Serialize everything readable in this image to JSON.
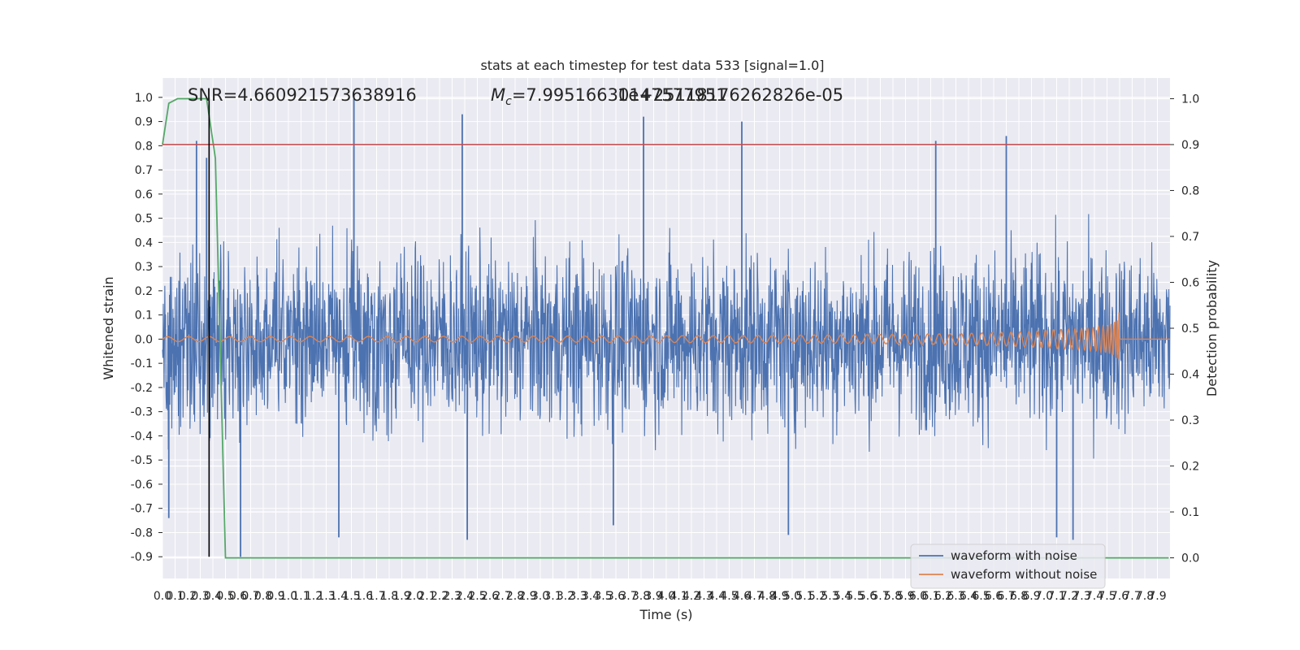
{
  "chart_data": {
    "type": "line",
    "title": "stats at each timestep for test data 533 [signal=1.0]",
    "xlabel": "Time (s)",
    "ylabel_left": "Whitened strain",
    "ylabel_right": "Detection probability",
    "xlim": [
      0.0,
      8.0
    ],
    "ylim_left": [
      -0.99,
      1.08
    ],
    "ylim_right": [
      -0.045,
      1.045
    ],
    "x_ticks": [
      "0.0",
      "0.1",
      "0.2",
      "0.3",
      "0.4",
      "0.5",
      "0.6",
      "0.7",
      "0.8",
      "0.9",
      "1.0",
      "1.1",
      "1.2",
      "1.3",
      "1.4",
      "1.5",
      "1.6",
      "1.7",
      "1.8",
      "1.9",
      "2.0",
      "2.1",
      "2.2",
      "2.3",
      "2.4",
      "2.5",
      "2.6",
      "2.7",
      "2.8",
      "2.9",
      "3.0",
      "3.1",
      "3.2",
      "3.3",
      "3.4",
      "3.5",
      "3.6",
      "3.7",
      "3.8",
      "3.9",
      "4.0",
      "4.1",
      "4.2",
      "4.3",
      "4.4",
      "4.5",
      "4.6",
      "4.7",
      "4.8",
      "4.9",
      "5.0",
      "5.1",
      "5.2",
      "5.3",
      "5.4",
      "5.5",
      "5.6",
      "5.7",
      "5.8",
      "5.9",
      "6.0",
      "6.1",
      "6.2",
      "6.3",
      "6.4",
      "6.5",
      "6.6",
      "6.7",
      "6.8",
      "6.9",
      "7.0",
      "7.1",
      "7.2",
      "7.3",
      "7.4",
      "7.5",
      "7.6",
      "7.7",
      "7.8",
      "7.9"
    ],
    "y_ticks_left": [
      "1.0",
      "0.9",
      "0.8",
      "0.7",
      "0.6",
      "0.5",
      "0.4",
      "0.3",
      "0.2",
      "0.1",
      "0.0",
      "-0.1",
      "-0.2",
      "-0.3",
      "-0.4",
      "-0.5",
      "-0.6",
      "-0.7",
      "-0.8",
      "-0.9"
    ],
    "y_ticks_right": [
      "1.0",
      "0.9",
      "0.8",
      "0.7",
      "0.6",
      "0.5",
      "0.4",
      "0.3",
      "0.2",
      "0.1",
      "0.0"
    ],
    "annotations": {
      "snr": "SNR=4.660921573638916",
      "mc": "=7.99516630147577951",
      "mc_symbol": "M",
      "mc_subscript": "c",
      "extra": "1e+25118176262826e-05"
    },
    "series": [
      {
        "name": "waveform with noise",
        "color": "#4c72b0",
        "axis": "left",
        "envelope_typical": 0.42,
        "spike_peaks": [
          {
            "x": 0.27,
            "y": 0.82
          },
          {
            "x": 0.35,
            "y": 0.75
          },
          {
            "x": 1.52,
            "y": 1.0
          },
          {
            "x": 2.38,
            "y": 0.93
          },
          {
            "x": 3.82,
            "y": 0.92
          },
          {
            "x": 4.6,
            "y": 0.9
          },
          {
            "x": 6.14,
            "y": 0.82
          },
          {
            "x": 6.7,
            "y": 0.84
          }
        ],
        "trough_peaks": [
          {
            "x": 0.05,
            "y": -0.74
          },
          {
            "x": 0.62,
            "y": -0.9
          },
          {
            "x": 1.4,
            "y": -0.82
          },
          {
            "x": 2.42,
            "y": -0.83
          },
          {
            "x": 3.58,
            "y": -0.77
          },
          {
            "x": 4.97,
            "y": -0.81
          },
          {
            "x": 7.23,
            "y": -0.83
          },
          {
            "x": 7.1,
            "y": -0.82
          }
        ]
      },
      {
        "name": "waveform without noise",
        "color": "#dd8452",
        "axis": "left",
        "chirp_end_time": 7.6,
        "peak_amplitude": 0.12
      },
      {
        "name": "detection probability",
        "color": "#55a868",
        "axis": "right",
        "x": [
          0.0,
          0.05,
          0.12,
          0.35,
          0.42,
          0.5,
          7.99
        ],
        "y": [
          0.9,
          0.99,
          1.0,
          1.0,
          0.87,
          0.0,
          0.0
        ]
      }
    ],
    "threshold_line": {
      "axis": "right",
      "y": 0.9,
      "color": "#c44e52"
    },
    "event_marker": {
      "x": 0.37,
      "color": "#000000"
    },
    "legend": {
      "placement": "lower-right",
      "entries": [
        "waveform with noise",
        "waveform without noise"
      ]
    },
    "grid": true
  }
}
